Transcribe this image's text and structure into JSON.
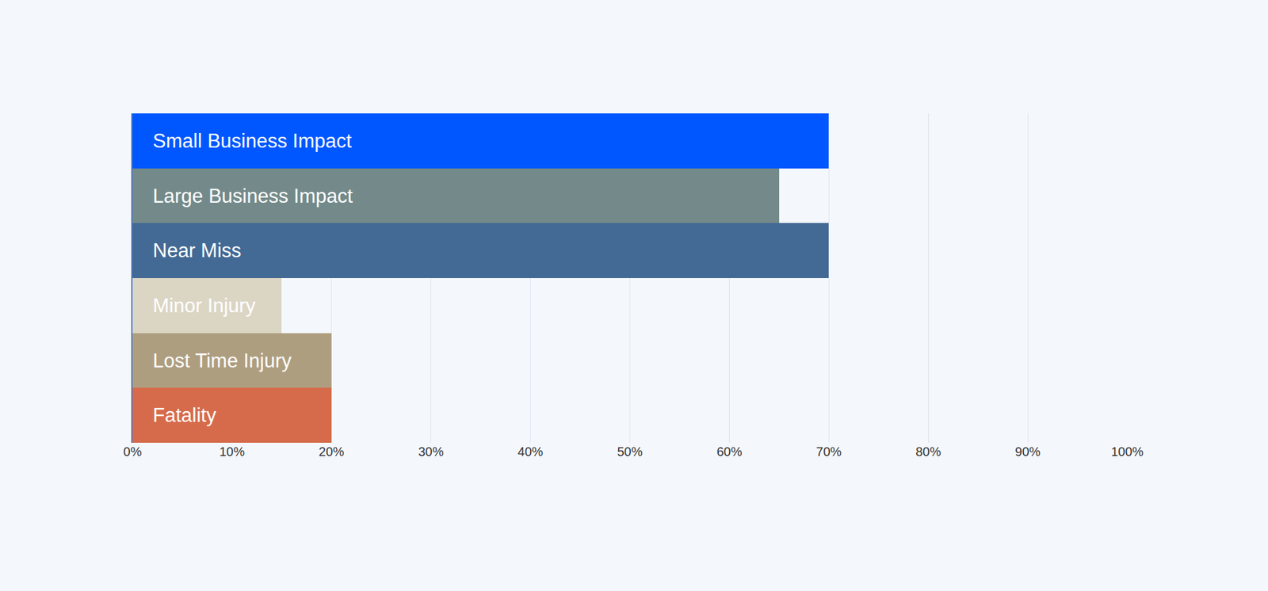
{
  "chart_data": {
    "type": "bar",
    "orientation": "horizontal",
    "categories": [
      "Small Business Impact",
      "Large Business Impact",
      "Near Miss",
      "Minor Injury",
      "Lost Time Injury",
      "Fatality"
    ],
    "values": [
      70,
      65,
      70,
      15,
      20,
      20
    ],
    "colors": [
      "#0057FF",
      "#748A8A",
      "#436A94",
      "#DBD5C4",
      "#AE9E80",
      "#D66B4B"
    ],
    "xlim": [
      0,
      100
    ],
    "xticks": [
      {
        "value": 0,
        "label": "0%"
      },
      {
        "value": 10,
        "label": "10%"
      },
      {
        "value": 20,
        "label": "20%"
      },
      {
        "value": 30,
        "label": "30%"
      },
      {
        "value": 40,
        "label": "40%"
      },
      {
        "value": 50,
        "label": "50%"
      },
      {
        "value": 60,
        "label": "60%"
      },
      {
        "value": 70,
        "label": "70%"
      },
      {
        "value": 80,
        "label": "80%"
      },
      {
        "value": 90,
        "label": "90%"
      },
      {
        "value": 100,
        "label": "100%"
      }
    ],
    "grid": true,
    "tick_labels": "x"
  }
}
